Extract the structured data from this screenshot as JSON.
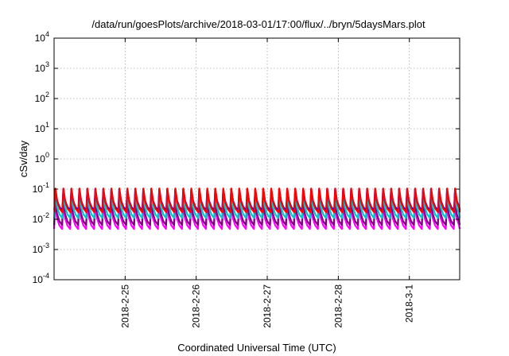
{
  "chart_data": {
    "type": "line",
    "title": "/data/run/goesPlots/archive/2018-03-01/17:00/flux/../bryn/5daysMars.plot",
    "xlabel": "Coordinated Universal Time (UTC)",
    "ylabel": "cSv/day",
    "y_scale": "log",
    "ylim": [
      0.0001,
      10000
    ],
    "y_ticks": [
      {
        "base": "10",
        "exp": "4"
      },
      {
        "base": "10",
        "exp": "3"
      },
      {
        "base": "10",
        "exp": "2"
      },
      {
        "base": "10",
        "exp": "1"
      },
      {
        "base": "10",
        "exp": "0"
      },
      {
        "base": "10",
        "exp": "-1"
      },
      {
        "base": "10",
        "exp": "-2"
      },
      {
        "base": "10",
        "exp": "-3"
      },
      {
        "base": "10",
        "exp": "-4"
      }
    ],
    "x_ticks": [
      "2018-2-25",
      "2018-2-26",
      "2018-2-27",
      "2018-2-28",
      "2018-3-1"
    ],
    "xlim": [
      "2018-02-24 00:00",
      "2018-03-01 17:00"
    ],
    "grid": true,
    "legend": "none",
    "cycle_hours": 2.7,
    "series": [
      {
        "color": "#ff00ff",
        "peak": 0.033,
        "trough": 0.0048
      },
      {
        "color": "#800080",
        "peak": 0.045,
        "trough": 0.0065
      },
      {
        "color": "#00c8c8",
        "peak": 0.07,
        "trough": 0.011
      },
      {
        "color": "#0000ff",
        "peak": 0.1,
        "trough": 0.02
      },
      {
        "color": "#ff0000",
        "peak": 0.105,
        "trough": 0.017
      }
    ]
  }
}
